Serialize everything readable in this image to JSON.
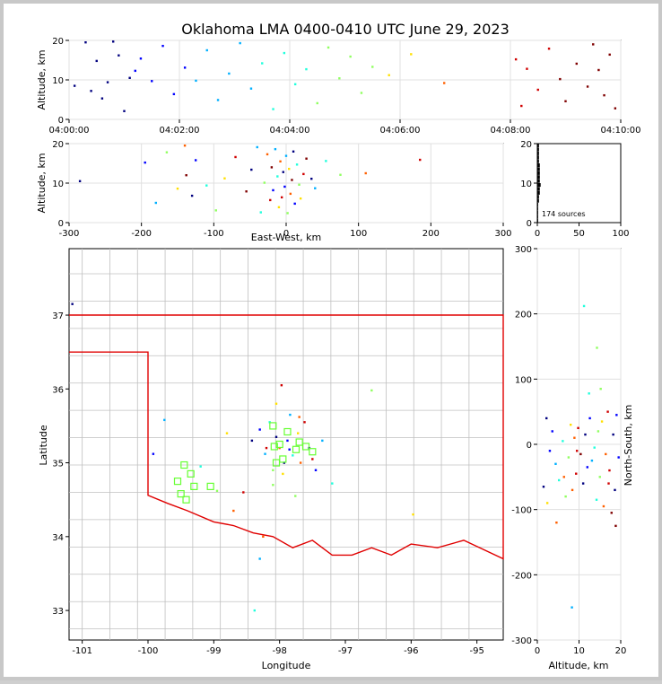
{
  "title": "Oklahoma LMA 0400-0410 UTC June 29, 2023",
  "source_count_label": "174 sources",
  "colors": {
    "map_lines": "#c0c0c0",
    "state_border": "#e00000",
    "station_marker": "#66ff33",
    "grid": "#e0e0e0",
    "time_scale": [
      "#00007f",
      "#0000ff",
      "#00b0ff",
      "#20ffdc",
      "#90ff60",
      "#ffe000",
      "#ff6000",
      "#d00000",
      "#7f0000"
    ]
  },
  "chart_data": [
    {
      "id": "alt_time",
      "type": "scatter",
      "title": "",
      "xlabel": "",
      "ylabel": "Altitude, km",
      "x_is_time": true,
      "xlim": [
        "04:00:00",
        "04:10:00"
      ],
      "ylim": [
        0,
        20
      ],
      "xticks": [
        "04:00:00",
        "04:02:00",
        "04:04:00",
        "04:06:00",
        "04:08:00",
        "04:10:00"
      ],
      "yticks": [
        0,
        10,
        20
      ],
      "grid": true,
      "color_by": "time",
      "note_points": "x in minutes after 04:00:00 UTC",
      "x": [
        0.1,
        0.3,
        0.4,
        0.5,
        0.6,
        0.7,
        0.8,
        0.9,
        1.0,
        1.1,
        1.2,
        1.3,
        1.5,
        1.7,
        1.9,
        2.1,
        2.3,
        2.5,
        2.7,
        2.9,
        3.1,
        3.3,
        3.5,
        3.7,
        3.9,
        4.1,
        4.3,
        4.5,
        4.7,
        4.9,
        5.1,
        5.3,
        5.5,
        5.8,
        6.2,
        6.8,
        8.1,
        8.2,
        8.3,
        8.5,
        8.7,
        8.9,
        9.0,
        9.2,
        9.4,
        9.5,
        9.6,
        9.7,
        9.8,
        9.9
      ],
      "y": [
        8.5,
        19.5,
        7.2,
        14.8,
        5.3,
        9.4,
        19.7,
        16.2,
        2.1,
        10.5,
        12.3,
        15.4,
        9.7,
        18.6,
        6.4,
        13.1,
        9.8,
        17.5,
        4.9,
        11.6,
        19.3,
        7.8,
        14.2,
        2.6,
        16.8,
        8.9,
        12.7,
        4.1,
        18.2,
        10.4,
        15.9,
        6.7,
        13.3,
        11.2,
        16.5,
        9.2,
        15.2,
        3.4,
        12.8,
        7.5,
        17.9,
        10.2,
        4.6,
        14.1,
        8.3,
        19.0,
        12.5,
        6.1,
        16.4,
        2.8
      ]
    },
    {
      "id": "alt_ew",
      "type": "scatter",
      "xlabel": "East-West, km",
      "ylabel": "Altitude, km",
      "xlim": [
        -300,
        300
      ],
      "ylim": [
        0,
        20
      ],
      "xticks": [
        -300,
        -200,
        -100,
        0,
        100,
        200,
        300
      ],
      "yticks": [
        0,
        10,
        20
      ],
      "grid": true,
      "color_by": "time",
      "x": [
        -285,
        -195,
        -180,
        -165,
        -150,
        -140,
        -138,
        -130,
        -125,
        -110,
        -97,
        -85,
        -70,
        -55,
        -48,
        -40,
        -35,
        -30,
        -26,
        -22,
        -20,
        -18,
        -15,
        -12,
        -10,
        -8,
        -6,
        -4,
        -2,
        0,
        2,
        4,
        6,
        8,
        10,
        12,
        15,
        18,
        20,
        24,
        28,
        35,
        40,
        55,
        75,
        110,
        185
      ],
      "y": [
        10.5,
        15.2,
        5.0,
        17.8,
        8.6,
        19.5,
        12.0,
        6.8,
        15.8,
        9.4,
        3.1,
        11.2,
        16.6,
        7.9,
        13.4,
        19.1,
        2.6,
        10.1,
        17.3,
        5.7,
        14.0,
        8.2,
        18.6,
        11.7,
        3.9,
        15.5,
        6.4,
        12.8,
        9.1,
        16.9,
        2.4,
        13.6,
        7.3,
        10.8,
        18.0,
        4.8,
        14.7,
        9.6,
        6.1,
        12.3,
        16.2,
        11.1,
        8.7,
        15.6,
        12.1,
        12.5,
        15.9
      ]
    },
    {
      "id": "alt_hist",
      "type": "bar",
      "orientation": "horizontal",
      "xlabel": "",
      "ylabel": "",
      "xlim": [
        0,
        100
      ],
      "ylim": [
        0,
        20
      ],
      "xticks": [
        0,
        50,
        100
      ],
      "yticks": [
        0,
        10,
        20
      ],
      "grid": false,
      "altitude_bins_km": [
        0,
        1,
        2,
        3,
        4,
        5,
        6,
        7,
        8,
        9,
        10,
        11,
        12,
        13,
        14,
        15,
        16,
        17,
        18,
        19
      ],
      "counts": [
        1,
        1,
        1,
        1,
        1,
        2,
        2,
        3,
        3,
        4,
        3,
        3,
        3,
        3,
        3,
        2,
        2,
        2,
        2,
        2
      ]
    },
    {
      "id": "plan_view",
      "type": "scatter",
      "xlabel": "Longitude",
      "ylabel": "Latitude",
      "xlim": [
        -101.2,
        -94.6
      ],
      "ylim": [
        32.6,
        37.9
      ],
      "xticks": [
        -101,
        -100,
        -99,
        -98,
        -97,
        -96,
        -95
      ],
      "yticks": [
        33,
        34,
        35,
        36,
        37
      ],
      "grid": false,
      "color_by": "time",
      "lon": [
        -101.15,
        -99.92,
        -99.75,
        -99.2,
        -98.95,
        -98.8,
        -98.7,
        -98.55,
        -98.42,
        -98.3,
        -98.22,
        -98.15,
        -98.1,
        -98.05,
        -98.0,
        -97.97,
        -97.93,
        -97.88,
        -97.84,
        -97.8,
        -97.76,
        -97.72,
        -97.68,
        -97.62,
        -97.55,
        -97.45,
        -97.35,
        -97.2,
        -96.6,
        -95.97,
        -98.25,
        -98.2,
        -98.05,
        -97.85,
        -98.3,
        -98.38,
        -98.1,
        -97.95,
        -97.7,
        -97.5
      ],
      "lat": [
        37.15,
        35.12,
        35.58,
        34.95,
        34.62,
        35.4,
        34.35,
        34.6,
        35.3,
        35.45,
        35.12,
        35.55,
        34.9,
        35.8,
        35.2,
        36.05,
        35.0,
        35.3,
        35.65,
        35.1,
        34.55,
        35.4,
        35.0,
        35.55,
        35.2,
        34.9,
        35.3,
        34.72,
        35.98,
        34.3,
        34.0,
        35.2,
        35.35,
        35.18,
        33.7,
        33.0,
        34.7,
        34.85,
        35.62,
        35.05
      ],
      "stations": {
        "lon": [
          -99.45,
          -99.35,
          -99.55,
          -99.3,
          -99.05,
          -99.5,
          -98.08,
          -98.0,
          -97.88,
          -97.75,
          -97.6,
          -97.5,
          -98.1,
          -97.95,
          -97.7,
          -98.05,
          -99.42
        ],
        "lat": [
          34.97,
          34.85,
          34.75,
          34.68,
          34.68,
          34.58,
          35.22,
          35.25,
          35.42,
          35.18,
          35.22,
          35.15,
          35.5,
          35.05,
          35.28,
          35.0,
          34.5
        ]
      }
    },
    {
      "id": "ns_alt",
      "type": "scatter",
      "xlabel": "Altitude, km",
      "ylabel": "North-South, km",
      "xlim": [
        0,
        20
      ],
      "ylim": [
        -300,
        300
      ],
      "xticks": [
        0,
        10,
        20
      ],
      "yticks": [
        -300,
        -200,
        -100,
        0,
        100,
        200,
        300
      ],
      "grid": true,
      "color_by": "time",
      "x": [
        1.5,
        2.2,
        3.0,
        3.6,
        4.4,
        5.2,
        6.1,
        6.8,
        7.5,
        8.0,
        8.4,
        8.9,
        9.3,
        9.8,
        10.4,
        11.0,
        11.5,
        12.0,
        12.6,
        13.1,
        13.7,
        14.2,
        14.6,
        15.0,
        15.5,
        15.9,
        16.4,
        16.9,
        17.3,
        17.8,
        18.2,
        18.6,
        19.0,
        19.5,
        8.3,
        11.2,
        12.4,
        14.3,
        15.2,
        2.4,
        4.6,
        6.4,
        9.5,
        17.1,
        18.8
      ],
      "y": [
        -65,
        40,
        -10,
        20,
        -30,
        -55,
        5,
        -80,
        -20,
        30,
        -70,
        10,
        -45,
        25,
        -15,
        -60,
        15,
        -35,
        40,
        -25,
        -5,
        -85,
        20,
        -50,
        35,
        -95,
        -15,
        50,
        -40,
        -105,
        15,
        -70,
        45,
        -20,
        -250,
        212,
        78,
        148,
        85,
        -90,
        -120,
        -50,
        -10,
        -60,
        -125
      ]
    }
  ]
}
